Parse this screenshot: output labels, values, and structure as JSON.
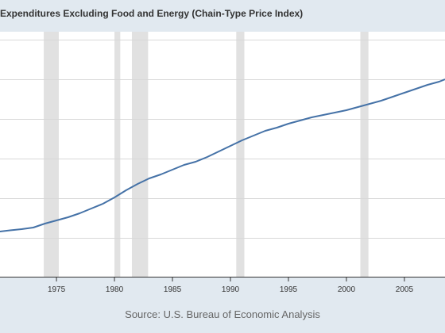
{
  "chart_data": {
    "type": "line",
    "title": "Expenditures Excluding Food and Energy (Chain-Type Price Index)",
    "source": "Source: U.S. Bureau of Economic Analysis",
    "x_ticks": [
      "1975",
      "1980",
      "1985",
      "1990",
      "1995",
      "2000",
      "2005"
    ],
    "xlim": [
      1970.13,
      2008.5
    ],
    "ylim": [
      0,
      31
    ],
    "grid": true,
    "recession_periods": [
      [
        1973.9,
        1975.2
      ],
      [
        1980.0,
        1980.5
      ],
      [
        1981.5,
        1982.9
      ],
      [
        1990.5,
        1991.2
      ],
      [
        2001.2,
        2001.9
      ]
    ],
    "series": [
      {
        "color": "#4572a7",
        "points": [
          [
            1970.1,
            5.8
          ],
          [
            1971.0,
            5.95
          ],
          [
            1972.0,
            6.1
          ],
          [
            1973.0,
            6.3
          ],
          [
            1974.0,
            6.8
          ],
          [
            1975.0,
            7.2
          ],
          [
            1976.0,
            7.6
          ],
          [
            1977.0,
            8.1
          ],
          [
            1978.0,
            8.7
          ],
          [
            1979.0,
            9.3
          ],
          [
            1980.0,
            10.1
          ],
          [
            1981.0,
            11.0
          ],
          [
            1982.0,
            11.8
          ],
          [
            1983.0,
            12.5
          ],
          [
            1984.0,
            13.0
          ],
          [
            1985.0,
            13.6
          ],
          [
            1986.0,
            14.2
          ],
          [
            1987.0,
            14.6
          ],
          [
            1988.0,
            15.2
          ],
          [
            1989.0,
            15.9
          ],
          [
            1990.0,
            16.6
          ],
          [
            1991.0,
            17.3
          ],
          [
            1992.0,
            17.9
          ],
          [
            1993.0,
            18.5
          ],
          [
            1994.0,
            18.9
          ],
          [
            1995.0,
            19.4
          ],
          [
            1996.0,
            19.8
          ],
          [
            1997.0,
            20.2
          ],
          [
            1998.0,
            20.5
          ],
          [
            1999.0,
            20.8
          ],
          [
            2000.0,
            21.1
          ],
          [
            2001.0,
            21.5
          ],
          [
            2002.0,
            21.9
          ],
          [
            2003.0,
            22.3
          ],
          [
            2004.0,
            22.8
          ],
          [
            2005.0,
            23.3
          ],
          [
            2006.0,
            23.8
          ],
          [
            2007.0,
            24.3
          ],
          [
            2008.0,
            24.7
          ],
          [
            2008.5,
            25.0
          ]
        ]
      }
    ]
  }
}
